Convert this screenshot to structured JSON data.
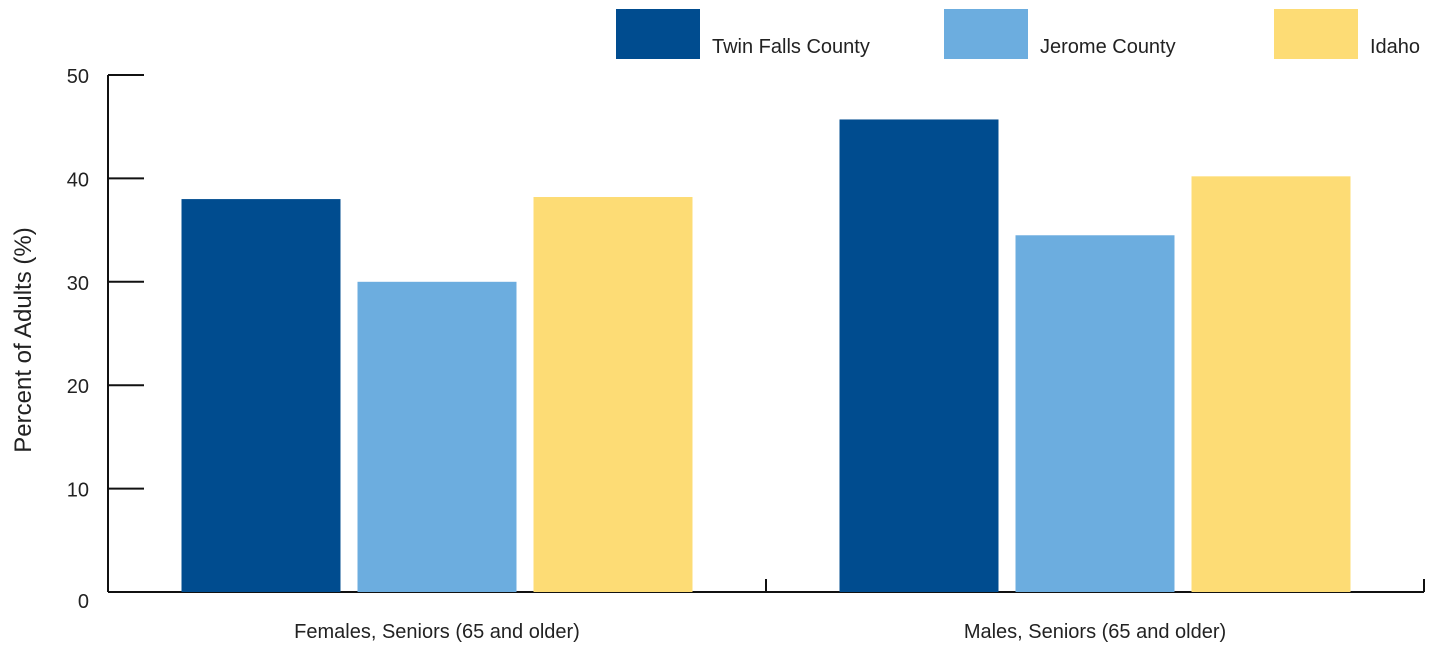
{
  "chart_data": {
    "type": "bar",
    "title": "",
    "xlabel": "",
    "ylabel": "Percent of Adults (%)",
    "ylim": [
      0,
      50
    ],
    "yticks": [
      0,
      10,
      20,
      30,
      40,
      50
    ],
    "grid": false,
    "legend_position": "top-right",
    "categories": [
      "Females, Seniors (65 and older)",
      "Males, Seniors (65 and older)"
    ],
    "series": [
      {
        "name": "Twin Falls County",
        "color": "#004C8F",
        "values": [
          38.0,
          45.7
        ]
      },
      {
        "name": "Jerome County",
        "color": "#6CADDF",
        "values": [
          30.0,
          34.5
        ]
      },
      {
        "name": "Idaho",
        "color": "#FDDC75",
        "values": [
          38.2,
          40.2
        ]
      }
    ]
  }
}
